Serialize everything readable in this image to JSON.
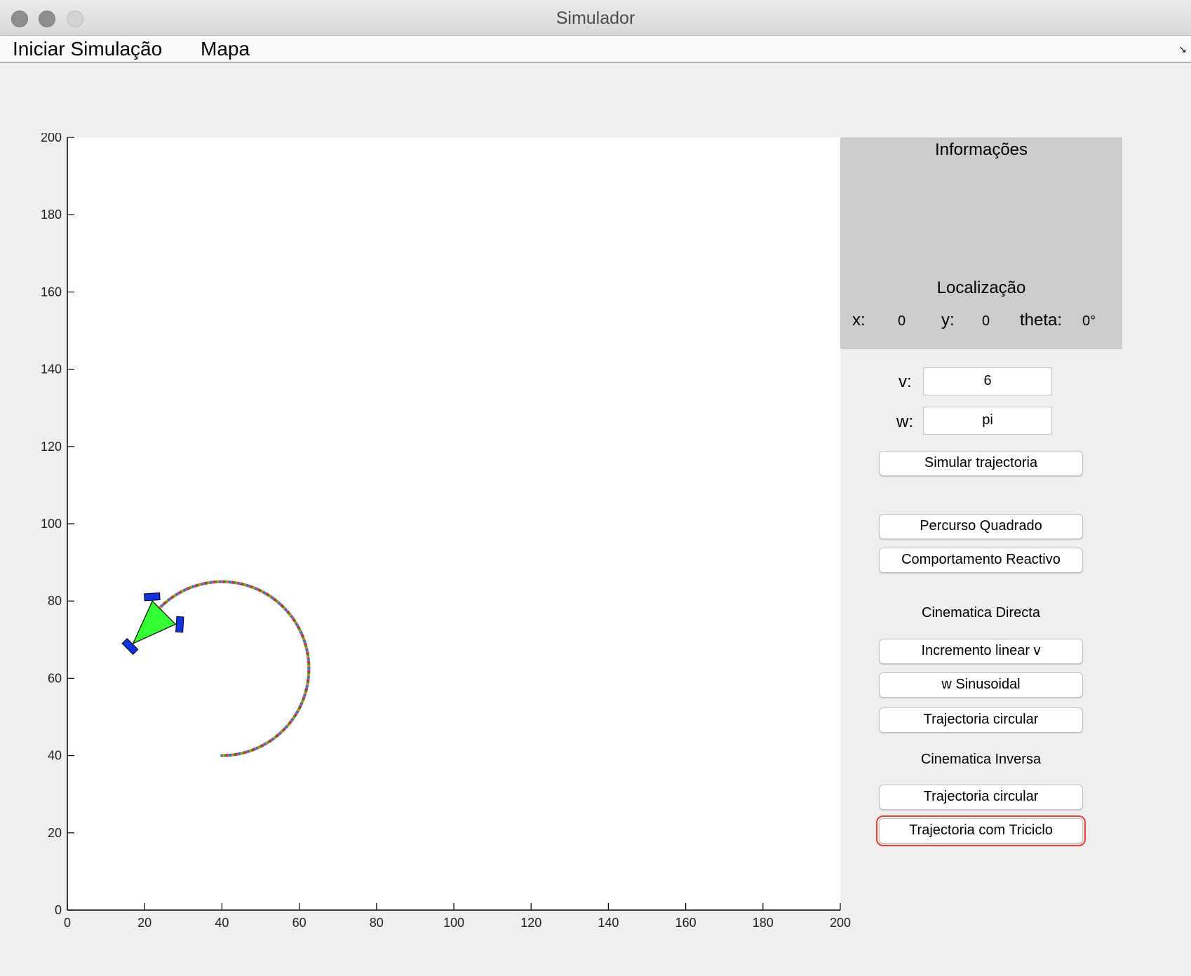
{
  "window": {
    "title": "Simulador"
  },
  "menu": {
    "items": [
      {
        "label": "Iniciar Simulação"
      },
      {
        "label": "Mapa"
      }
    ]
  },
  "chart_data": {
    "type": "scatter",
    "title": "",
    "xlabel": "",
    "ylabel": "",
    "xlim": [
      0,
      200
    ],
    "ylim": [
      0,
      200
    ],
    "xticks": [
      "0",
      "20",
      "40",
      "60",
      "80",
      "100",
      "120",
      "140",
      "160",
      "180",
      "200"
    ],
    "yticks": [
      "0",
      "20",
      "40",
      "60",
      "80",
      "100",
      "120",
      "140",
      "160",
      "180",
      "200"
    ],
    "grid": false,
    "trajectory": {
      "center": [
        40,
        62.5
      ],
      "radius": 22.5,
      "start_angle_deg": -90,
      "end_angle_deg": 140,
      "marker_colors": [
        "#1f77b4",
        "#ff7f0e",
        "#2ca02c",
        "#d62728",
        "#9467bd"
      ]
    },
    "robot": {
      "body": [
        [
          22,
          80
        ],
        [
          17,
          69
        ],
        [
          28,
          74
        ]
      ],
      "color": "#33ff33",
      "wheel_color": "#1133dd"
    }
  },
  "info": {
    "title": "Informações",
    "location_title": "Localização",
    "x_label": "x:",
    "x_value": "0",
    "y_label": "y:",
    "y_value": "0",
    "theta_label": "theta:",
    "theta_value": "0°"
  },
  "controls": {
    "v_label": "v:",
    "v_value": "6",
    "w_label": "w:",
    "w_value": "pi",
    "simulate_label": "Simular trajectoria",
    "square_label": "Percurso Quadrado",
    "reactive_label": "Comportamento Reactivo",
    "direct_title": "Cinematica Directa",
    "linear_label": "Incremento linear v",
    "sinus_label": "w Sinusoidal",
    "circular_direct_label": "Trajectoria circular",
    "inverse_title": "Cinematica Inversa",
    "circular_inverse_label": "Trajectoria circular",
    "tricycle_label": "Trajectoria com Triciclo"
  }
}
